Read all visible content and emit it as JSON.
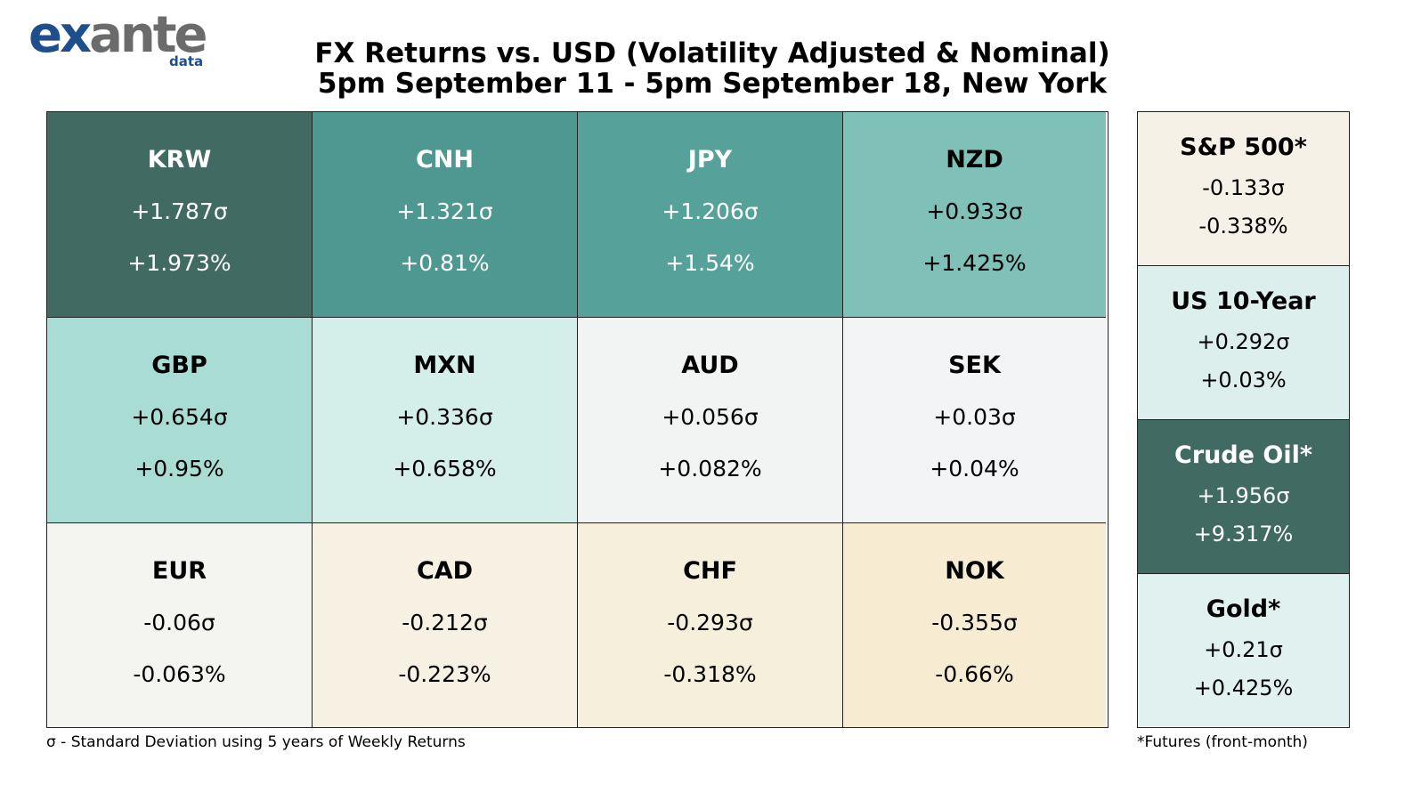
{
  "logo": {
    "brand_main_1": "ex",
    "brand_main_2": "ante",
    "brand_sub": "data"
  },
  "title": {
    "line1": "FX Returns vs. USD (Volatility Adjusted & Nominal)",
    "line2": "5pm September 11 - 5pm September 18, New York"
  },
  "chart_data": {
    "type": "heatmap",
    "fx_grid": {
      "rows": 3,
      "cols": 4,
      "cells": [
        {
          "currency": "KRW",
          "sigma": "+1.787σ",
          "pct": "+1.973%",
          "bg": "#416b62",
          "fg": "#ffffff"
        },
        {
          "currency": "CNH",
          "sigma": "+1.321σ",
          "pct": "+0.81%",
          "bg": "#4f9891",
          "fg": "#ffffff"
        },
        {
          "currency": "JPY",
          "sigma": "+1.206σ",
          "pct": "+1.54%",
          "bg": "#56a199",
          "fg": "#ffffff"
        },
        {
          "currency": "NZD",
          "sigma": "+0.933σ",
          "pct": "+1.425%",
          "bg": "#7fc1b8",
          "fg": "#000000"
        },
        {
          "currency": "GBP",
          "sigma": "+0.654σ",
          "pct": "+0.95%",
          "bg": "#a8dcd5",
          "fg": "#000000"
        },
        {
          "currency": "MXN",
          "sigma": "+0.336σ",
          "pct": "+0.658%",
          "bg": "#d4eeea",
          "fg": "#000000"
        },
        {
          "currency": "AUD",
          "sigma": "+0.056σ",
          "pct": "+0.082%",
          "bg": "#f1f4f3",
          "fg": "#000000"
        },
        {
          "currency": "SEK",
          "sigma": "+0.03σ",
          "pct": "+0.04%",
          "bg": "#f2f4f5",
          "fg": "#000000"
        },
        {
          "currency": "EUR",
          "sigma": "-0.06σ",
          "pct": "-0.063%",
          "bg": "#f4f4f0",
          "fg": "#000000"
        },
        {
          "currency": "CAD",
          "sigma": "-0.212σ",
          "pct": "-0.223%",
          "bg": "#f6f1e2",
          "fg": "#000000"
        },
        {
          "currency": "CHF",
          "sigma": "-0.293σ",
          "pct": "-0.318%",
          "bg": "#f6efdb",
          "fg": "#000000"
        },
        {
          "currency": "NOK",
          "sigma": "-0.355σ",
          "pct": "-0.66%",
          "bg": "#f7ebd2",
          "fg": "#000000"
        }
      ]
    },
    "side_panel": [
      {
        "asset": "S&P 500*",
        "sigma": "-0.133σ",
        "pct": "-0.338%",
        "bg": "#f6f1e6",
        "fg": "#000000"
      },
      {
        "asset": "US 10-Year",
        "sigma": "+0.292σ",
        "pct": "+0.03%",
        "bg": "#ddefec",
        "fg": "#000000"
      },
      {
        "asset": "Crude Oil*",
        "sigma": "+1.956σ",
        "pct": "+9.317%",
        "bg": "#416b62",
        "fg": "#ffffff"
      },
      {
        "asset": "Gold*",
        "sigma": "+0.21σ",
        "pct": "+0.425%",
        "bg": "#e1f1ef",
        "fg": "#000000"
      }
    ]
  },
  "footnotes": {
    "left": "σ - Standard Deviation using 5 years of Weekly Returns",
    "right": "*Futures (front-month)"
  }
}
